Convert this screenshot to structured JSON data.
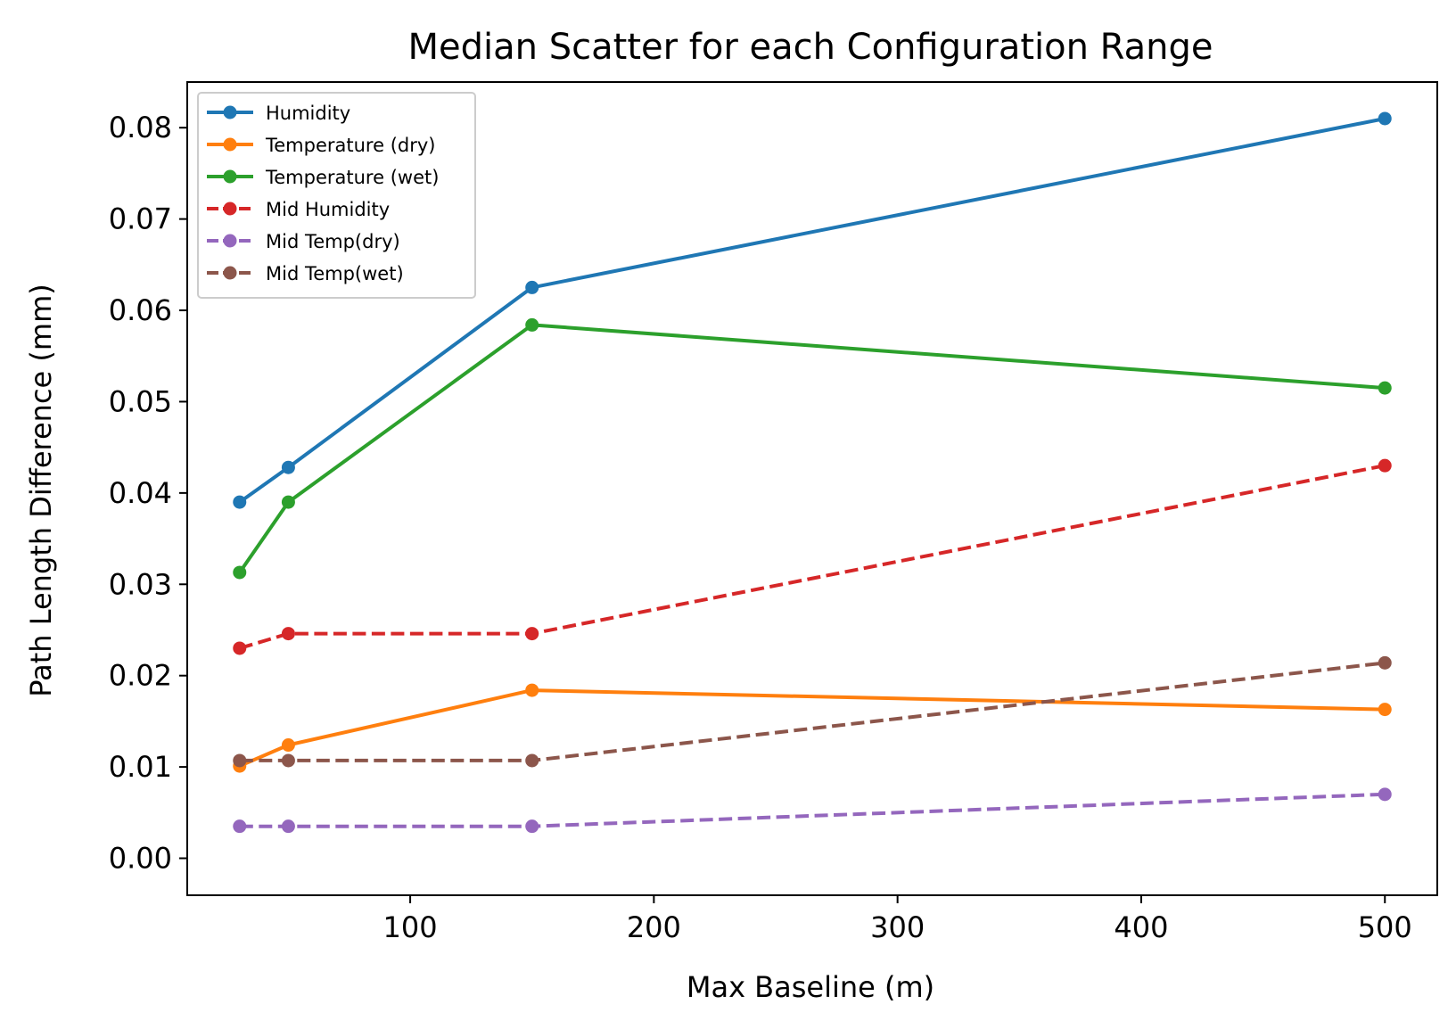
{
  "chart_data": {
    "type": "line",
    "title": "Median Scatter for each Configuration Range",
    "xlabel": "Max Baseline (m)",
    "ylabel": "Path Length Difference (mm)",
    "xlim": [
      8.5,
      521.5
    ],
    "ylim": [
      -0.00405,
      0.085
    ],
    "xticks": [
      100,
      200,
      300,
      400,
      500
    ],
    "xtick_labels": [
      "100",
      "200",
      "300",
      "400",
      "500"
    ],
    "yticks": [
      0.0,
      0.01,
      0.02,
      0.03,
      0.04,
      0.05,
      0.06,
      0.07,
      0.08
    ],
    "ytick_labels": [
      "0.00",
      "0.01",
      "0.02",
      "0.03",
      "0.04",
      "0.05",
      "0.06",
      "0.07",
      "0.08"
    ],
    "grid": false,
    "legend_position": "top-left",
    "x": [
      30,
      50,
      150,
      500
    ],
    "series": [
      {
        "name": "Humidity",
        "values": [
          0.039,
          0.0428,
          0.0625,
          0.081
        ],
        "color": "#1f77b4",
        "dashed": false
      },
      {
        "name": "Temperature (dry)",
        "values": [
          0.0101,
          0.0124,
          0.0184,
          0.0163
        ],
        "color": "#ff7f0e",
        "dashed": false
      },
      {
        "name": "Temperature (wet)",
        "values": [
          0.0313,
          0.039,
          0.0584,
          0.0515
        ],
        "color": "#2ca02c",
        "dashed": false
      },
      {
        "name": "Mid Humidity",
        "values": [
          0.023,
          0.0246,
          0.0246,
          0.043
        ],
        "color": "#d62728",
        "dashed": true
      },
      {
        "name": "Mid Temp(dry)",
        "values": [
          0.0035,
          0.0035,
          0.0035,
          0.007
        ],
        "color": "#9467bd",
        "dashed": true
      },
      {
        "name": "Mid Temp(wet)",
        "values": [
          0.0107,
          0.0107,
          0.0107,
          0.0214
        ],
        "color": "#8c564b",
        "dashed": true
      }
    ]
  }
}
